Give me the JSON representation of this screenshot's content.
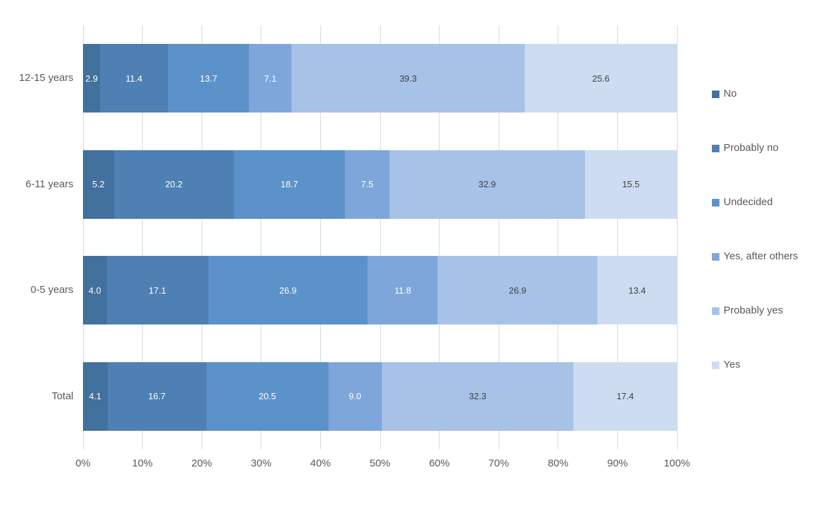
{
  "chart_data": {
    "type": "bar",
    "orientation": "horizontal",
    "stacked": true,
    "stacked_total": 100,
    "title": "",
    "categories": [
      "12-15 years",
      "6-11 years",
      "0-5 years",
      "Total"
    ],
    "series": [
      {
        "name": "No",
        "color": "#41719c",
        "label_color": "#ffffff",
        "values": [
          2.9,
          5.2,
          4.0,
          4.1
        ]
      },
      {
        "name": "Probably no",
        "color": "#4e80b4",
        "label_color": "#ffffff",
        "values": [
          11.4,
          20.2,
          17.1,
          16.7
        ]
      },
      {
        "name": "Undecided",
        "color": "#5b92c9",
        "label_color": "#ffffff",
        "values": [
          13.7,
          18.7,
          26.9,
          20.5
        ]
      },
      {
        "name": "Yes, after others",
        "color": "#7ea6da",
        "label_color": "#ffffff",
        "values": [
          7.1,
          7.5,
          11.8,
          9.0
        ]
      },
      {
        "name": "Probably yes",
        "color": "#a6c2e7",
        "label_color": "#404040",
        "values": [
          39.3,
          32.9,
          26.9,
          32.3
        ]
      },
      {
        "name": "Yes",
        "color": "#cddcf0",
        "label_color": "#404040",
        "values": [
          25.6,
          15.5,
          13.4,
          17.4
        ]
      }
    ],
    "x_axis": {
      "min": 0,
      "max": 100,
      "ticks": [
        "0%",
        "10%",
        "20%",
        "30%",
        "40%",
        "50%",
        "60%",
        "70%",
        "80%",
        "90%",
        "100%"
      ]
    },
    "legend": {
      "position": "right",
      "entries": [
        "No",
        "Probably no",
        "Undecided",
        "Yes, after others",
        "Probably yes",
        "Yes"
      ]
    },
    "grid": true,
    "value_label_decimals": 1,
    "colors": {
      "background": "#ffffff",
      "gridline": "#d9d9d9",
      "axis_text": "#595959",
      "dark_value_label": "#404040",
      "light_value_label": "#ffffff"
    }
  }
}
